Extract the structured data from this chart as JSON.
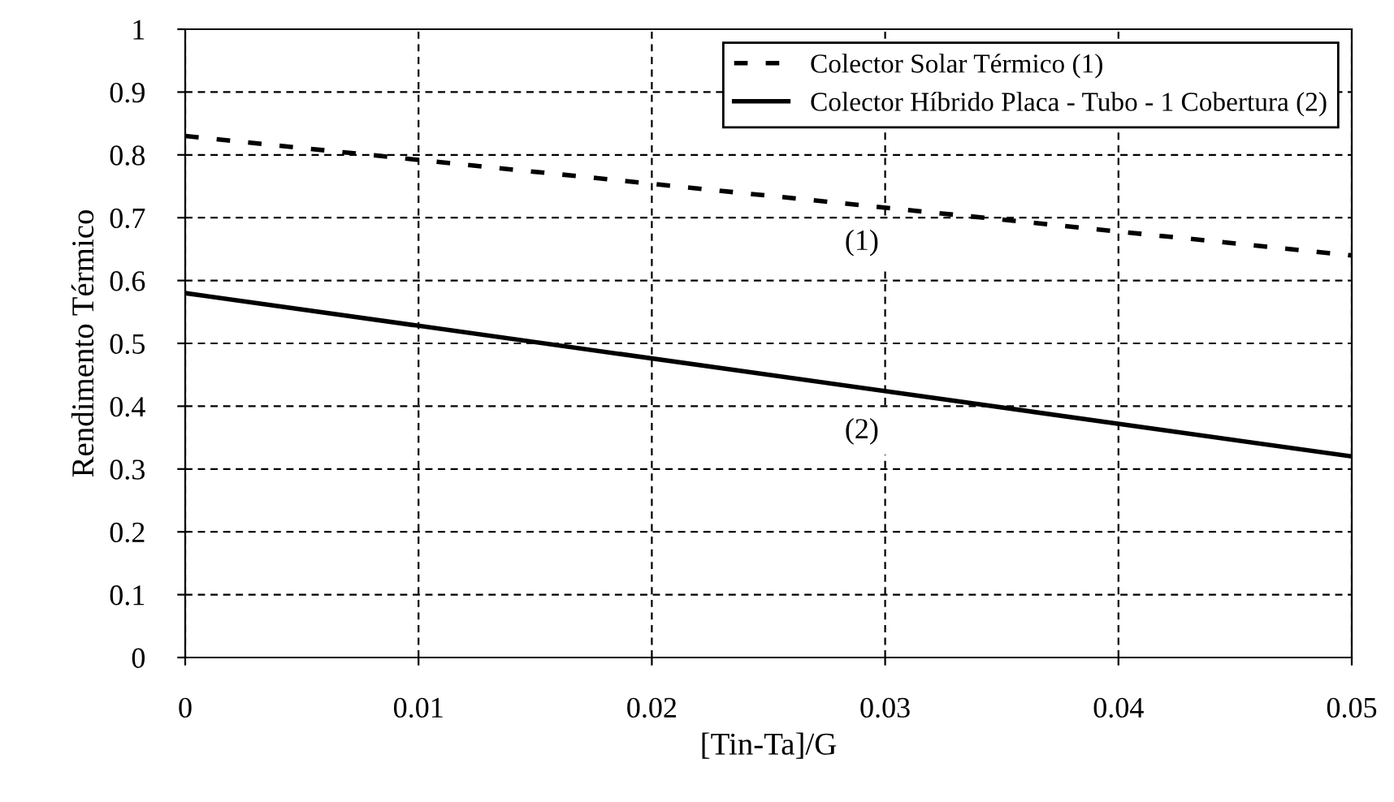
{
  "chart_data": {
    "type": "line",
    "xlabel": "[Tin-Ta]/G",
    "ylabel": "Rendimento Térmico",
    "x": [
      0,
      0.05
    ],
    "series": [
      {
        "name": "Colector Solar Térmico (1)",
        "color": "#000000",
        "values": [
          0.83,
          0.64
        ],
        "line_style": "dashed"
      },
      {
        "name": "Colector Híbrido Placa - Tubo - 1 Cobertura (2)",
        "color": "#000000",
        "values": [
          0.58,
          0.32
        ],
        "line_style": "solid"
      }
    ],
    "annotations": [
      {
        "text": "(1)",
        "x": 0.029,
        "y": 0.66
      },
      {
        "text": "(2)",
        "x": 0.029,
        "y": 0.36
      }
    ],
    "xlim": [
      0,
      0.05
    ],
    "xticks": [
      0,
      0.01,
      0.02,
      0.03,
      0.04,
      0.05
    ],
    "ylim": [
      0,
      1
    ],
    "yticks": [
      0,
      0.1,
      0.2,
      0.3,
      0.4,
      0.5,
      0.6,
      0.7,
      0.8,
      0.9,
      1
    ],
    "grid": true,
    "legend": "top right",
    "marker": "none"
  }
}
